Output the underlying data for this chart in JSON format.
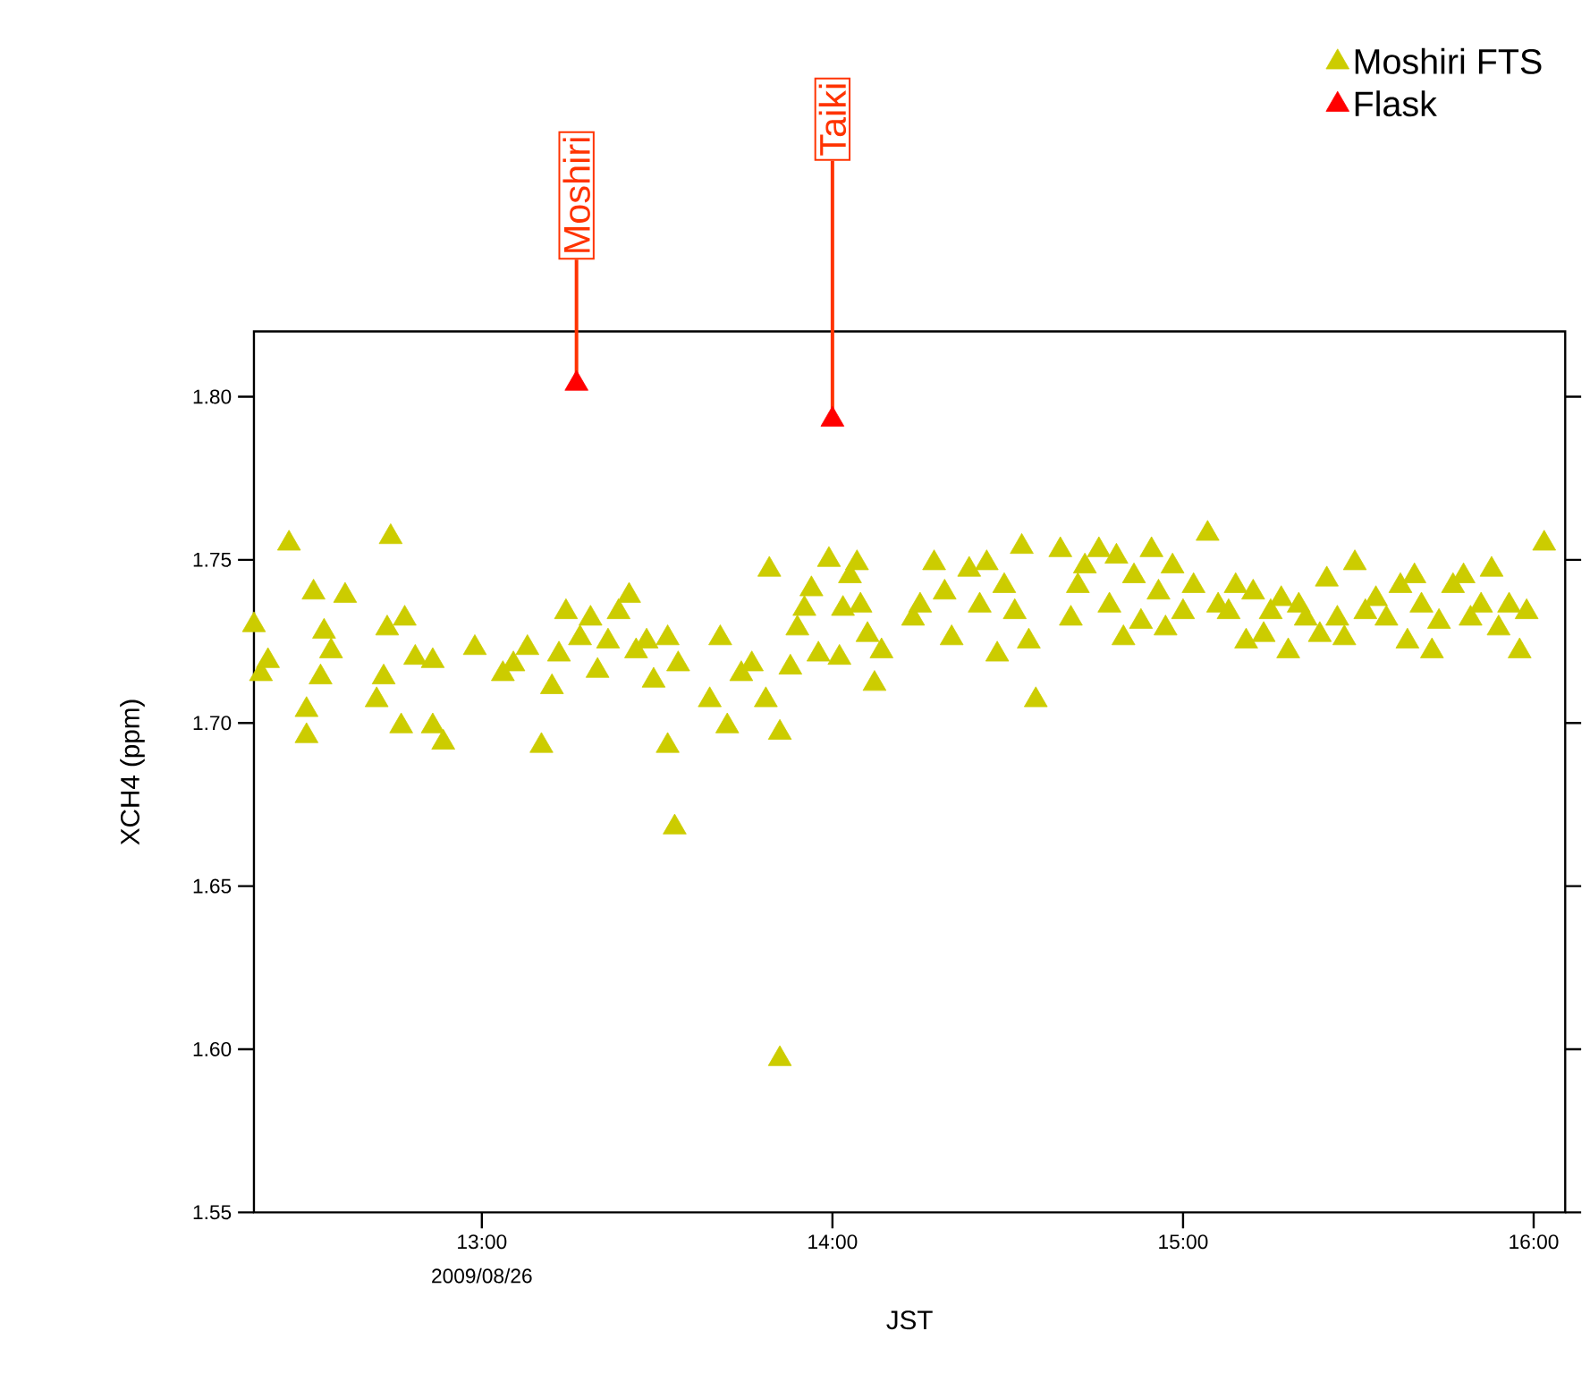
{
  "chart_data": {
    "type": "scatter",
    "xlabel": "JST",
    "ylabel": "XCH4 (ppm)",
    "xlim": [
      12.35,
      16.09
    ],
    "ylim": [
      1.55,
      1.82
    ],
    "xticks": [
      {
        "value": 13,
        "label": "13:00"
      },
      {
        "value": 14,
        "label": "14:00"
      },
      {
        "value": 15,
        "label": "15:00"
      },
      {
        "value": 16,
        "label": "16:00"
      }
    ],
    "yticks": [
      {
        "value": 1.55,
        "label": "1.55"
      },
      {
        "value": 1.6,
        "label": "1.60"
      },
      {
        "value": 1.65,
        "label": "1.65"
      },
      {
        "value": 1.7,
        "label": "1.70"
      },
      {
        "value": 1.75,
        "label": "1.75"
      },
      {
        "value": 1.8,
        "label": "1.80"
      }
    ],
    "marker": "triangle",
    "legend": "top right",
    "series": [
      {
        "name": "Moshiri FTS",
        "color": "#cccc00",
        "x": [
          12.35,
          12.37,
          12.39,
          12.45,
          12.5,
          12.5,
          12.52,
          12.54,
          12.55,
          12.57,
          12.61,
          12.7,
          12.72,
          12.73,
          12.74,
          12.77,
          12.78,
          12.81,
          12.86,
          12.86,
          12.89,
          12.98,
          13.06,
          13.09,
          13.13,
          13.17,
          13.2,
          13.22,
          13.24,
          13.28,
          13.31,
          13.33,
          13.36,
          13.39,
          13.42,
          13.44,
          13.47,
          13.49,
          13.53,
          13.55,
          13.53,
          13.56,
          13.65,
          13.68,
          13.7,
          13.74,
          13.77,
          13.81,
          13.82,
          13.85,
          13.85,
          13.88,
          13.9,
          13.92,
          13.94,
          13.96,
          13.99,
          14.02,
          14.03,
          14.05,
          14.07,
          14.08,
          14.1,
          14.12,
          14.14,
          14.23,
          14.25,
          14.29,
          14.32,
          14.34,
          14.39,
          14.42,
          14.44,
          14.47,
          14.49,
          14.52,
          14.54,
          14.56,
          14.58,
          14.65,
          14.68,
          14.7,
          14.72,
          14.76,
          14.79,
          14.81,
          14.83,
          14.86,
          14.88,
          14.91,
          14.93,
          14.95,
          14.97,
          15.0,
          15.03,
          15.07,
          15.1,
          15.13,
          15.15,
          15.18,
          15.2,
          15.23,
          15.25,
          15.28,
          15.3,
          15.33,
          15.35,
          15.39,
          15.41,
          15.44,
          15.46,
          15.49,
          15.52,
          15.55,
          15.58,
          15.62,
          15.64,
          15.66,
          15.68,
          15.71,
          15.73,
          15.77,
          15.8,
          15.82,
          15.85,
          15.88,
          15.9,
          15.93,
          15.96,
          15.98,
          16.03
        ],
        "values": [
          1.73,
          1.715,
          1.719,
          1.755,
          1.704,
          1.696,
          1.74,
          1.714,
          1.728,
          1.722,
          1.739,
          1.707,
          1.714,
          1.729,
          1.757,
          1.699,
          1.732,
          1.72,
          1.719,
          1.699,
          1.694,
          1.723,
          1.715,
          1.718,
          1.723,
          1.693,
          1.711,
          1.721,
          1.734,
          1.726,
          1.732,
          1.716,
          1.725,
          1.734,
          1.739,
          1.722,
          1.725,
          1.713,
          1.693,
          1.668,
          1.726,
          1.718,
          1.707,
          1.726,
          1.699,
          1.715,
          1.718,
          1.707,
          1.747,
          1.697,
          1.597,
          1.717,
          1.729,
          1.735,
          1.741,
          1.721,
          1.75,
          1.72,
          1.735,
          1.745,
          1.749,
          1.736,
          1.727,
          1.712,
          1.722,
          1.732,
          1.736,
          1.749,
          1.74,
          1.726,
          1.747,
          1.736,
          1.749,
          1.721,
          1.742,
          1.734,
          1.754,
          1.725,
          1.707,
          1.753,
          1.732,
          1.742,
          1.748,
          1.753,
          1.736,
          1.751,
          1.726,
          1.745,
          1.731,
          1.753,
          1.74,
          1.729,
          1.748,
          1.734,
          1.742,
          1.758,
          1.736,
          1.734,
          1.742,
          1.725,
          1.74,
          1.727,
          1.734,
          1.738,
          1.722,
          1.736,
          1.732,
          1.727,
          1.744,
          1.732,
          1.726,
          1.749,
          1.734,
          1.738,
          1.732,
          1.742,
          1.725,
          1.745,
          1.736,
          1.722,
          1.731,
          1.742,
          1.745,
          1.732,
          1.736,
          1.747,
          1.729,
          1.736,
          1.722,
          1.734,
          1.755
        ]
      },
      {
        "name": "Flask",
        "color": "#ff0000",
        "x": [
          13.27,
          14.0
        ],
        "values": [
          1.804,
          1.793
        ]
      }
    ],
    "annotations": [
      {
        "text": "Moshiri",
        "x": 13.27,
        "y": 1.804
      },
      {
        "text": "Taiki",
        "x": 14.0,
        "y": 1.793
      },
      "2009/08/26"
    ]
  }
}
